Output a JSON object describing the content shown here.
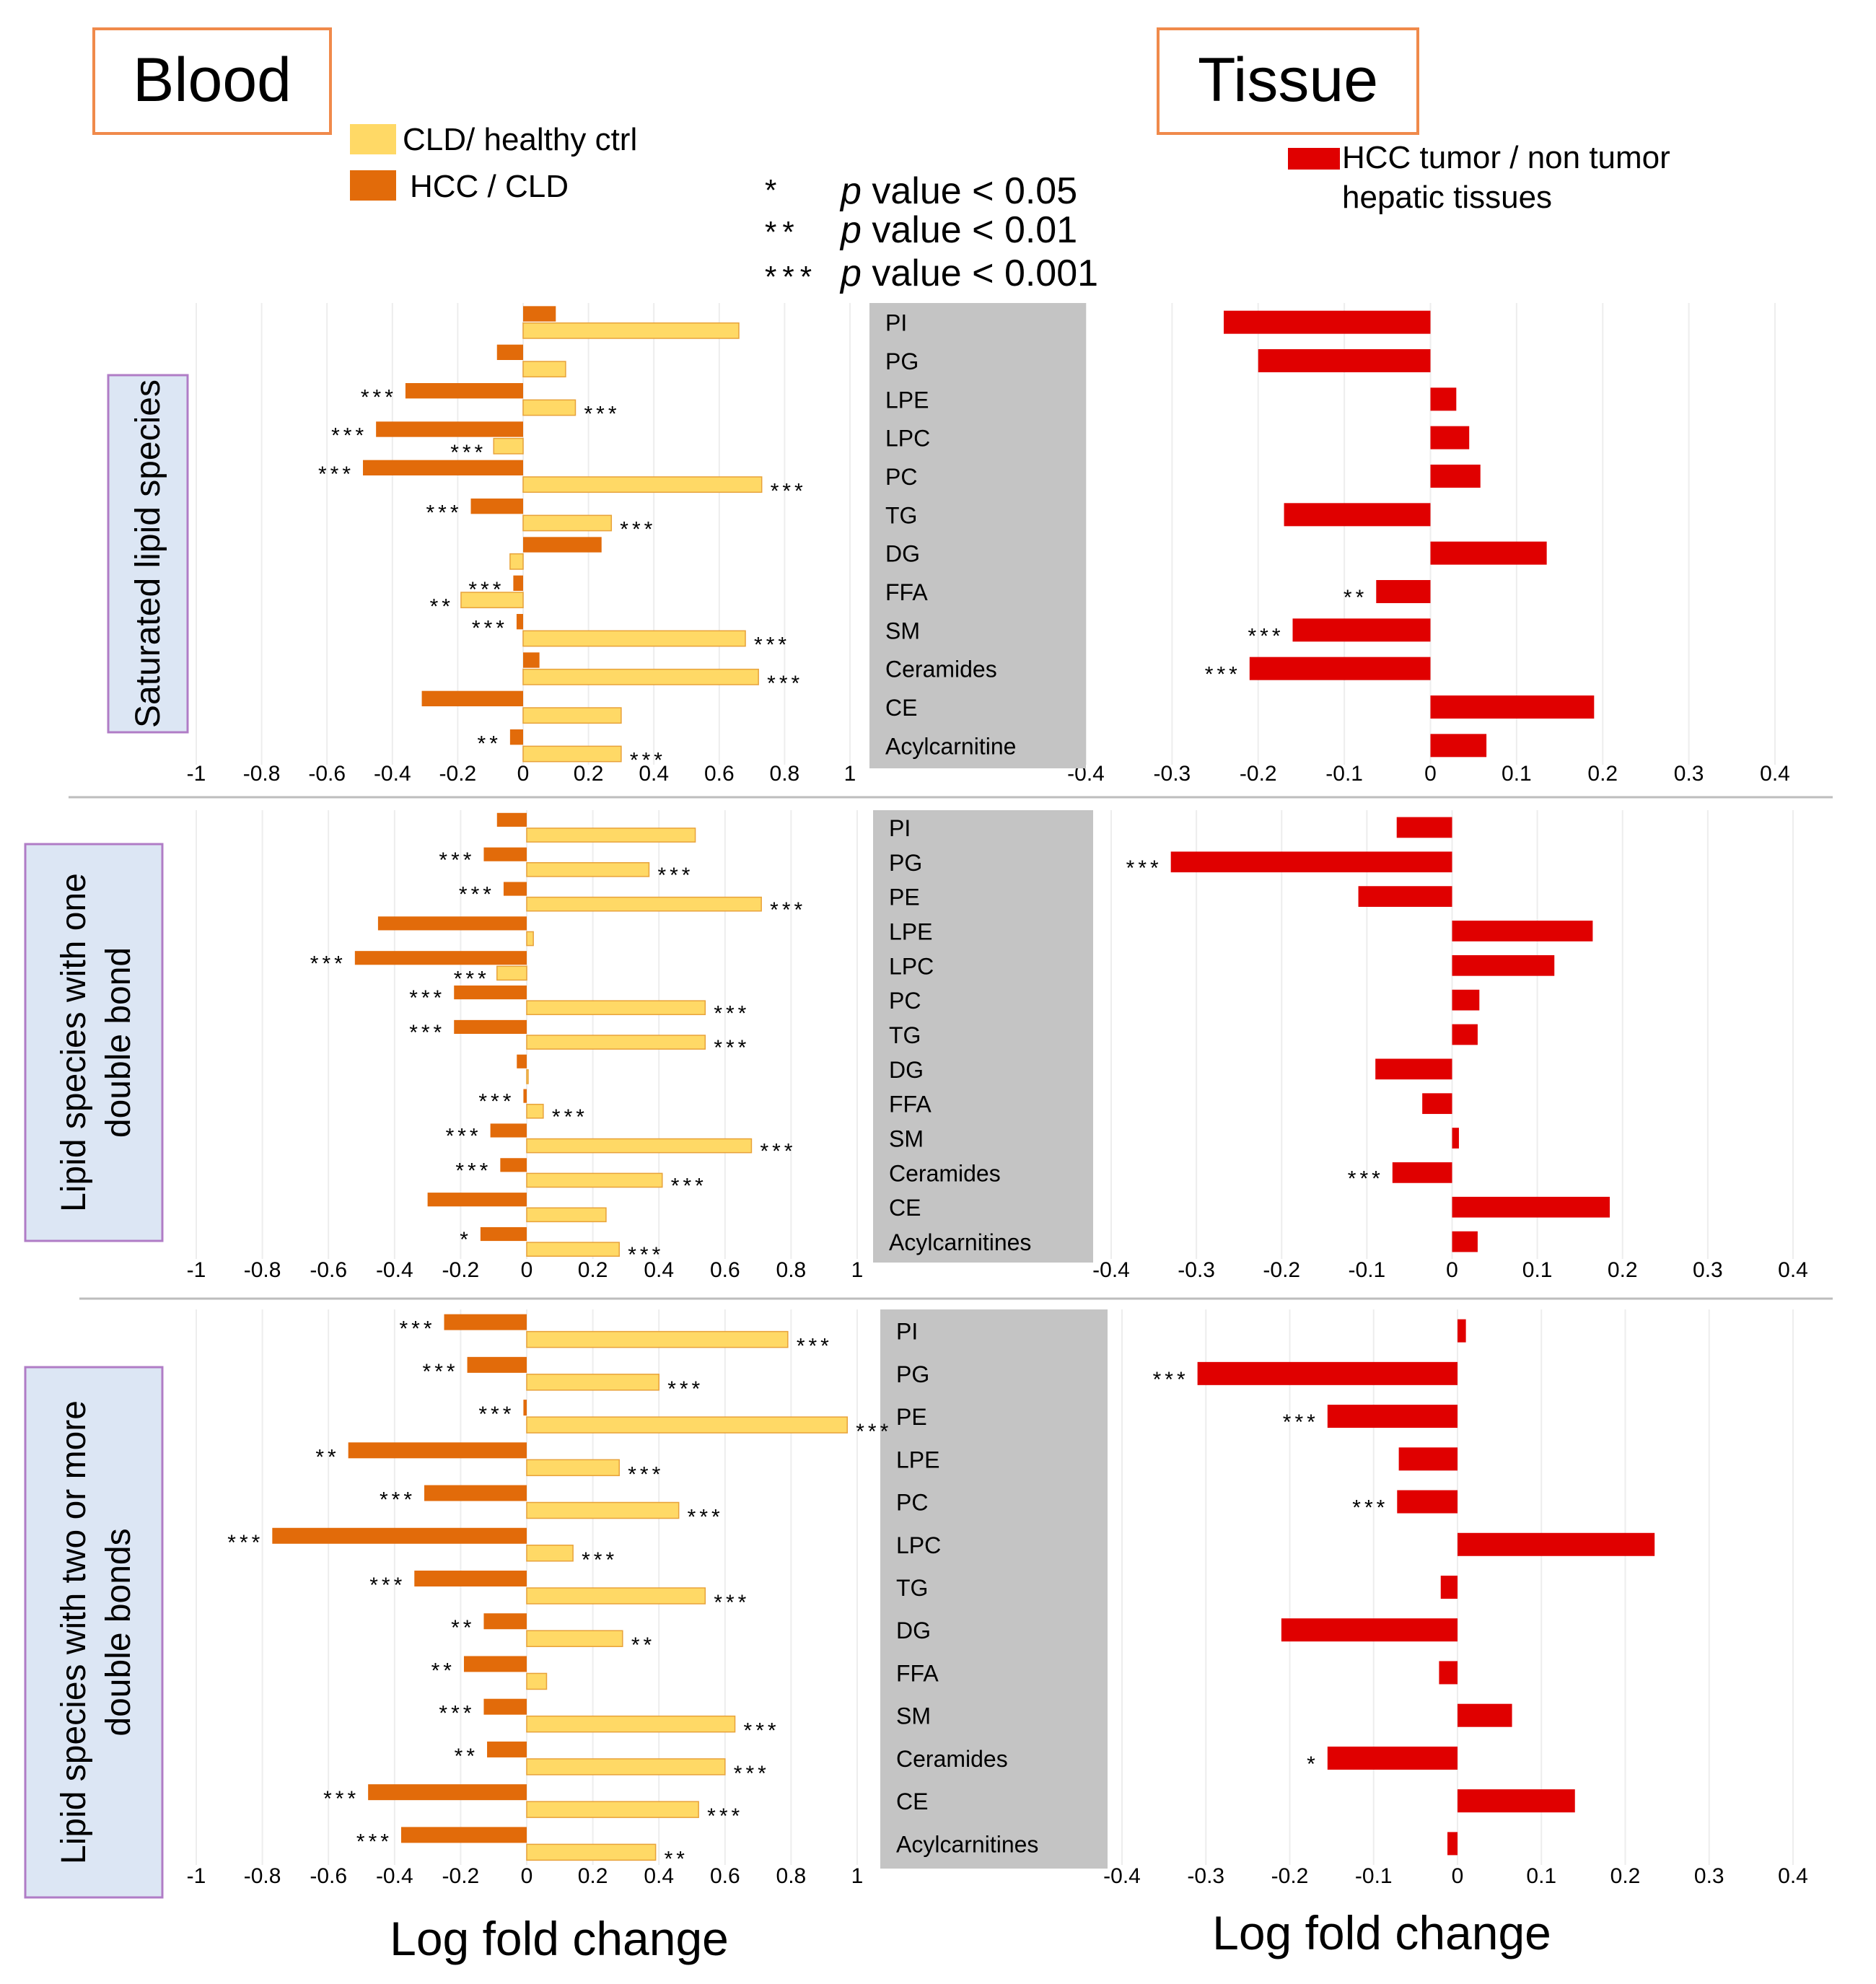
{
  "headers": {
    "blood": "Blood",
    "tissue": "Tissue",
    "xlabel": "Log fold change"
  },
  "legend": {
    "cld": "CLD/ healthy ctrl",
    "hcc": "HCC / CLD",
    "tissue_l1": "HCC tumor / non tumor",
    "tissue_l2": "hepatic tissues"
  },
  "pvalues": [
    {
      "stars": "*",
      "p": "p",
      "text": " value < 0.05"
    },
    {
      "stars": "**",
      "p": "p",
      "text": " value < 0.01"
    },
    {
      "stars": "***",
      "p": "p",
      "text": " value < 0.001"
    }
  ],
  "colors": {
    "cld": "#FFD966",
    "cld_edge": "#E8A23A",
    "hcc": "#E26B0A",
    "tissue": "#E00000",
    "label_box": "#C4C4C4",
    "side_box": "#DCE6F4",
    "side_edge": "#B07CC6",
    "header_edge": "#F08A4B"
  },
  "blood_ticks": [
    "-1",
    "-0.8",
    "-0.6",
    "-0.4",
    "-0.2",
    "0",
    "0.2",
    "0.4",
    "0.6",
    "0.8",
    "1"
  ],
  "tissue_ticks": [
    "-0.4",
    "-0.3",
    "-0.2",
    "-0.1",
    "0",
    "0.1",
    "0.2",
    "0.3",
    "0.4"
  ],
  "chart_data": [
    {
      "type": "bar",
      "title": "Saturated lipid species",
      "xlabel": "Log fold change",
      "categories": [
        "PI",
        "PG",
        "LPE",
        "LPC",
        "PC",
        "TG",
        "DG",
        "FFA",
        "SM",
        "Ceramides",
        "CE",
        "Acylcarnitine"
      ],
      "blood_xlim": [
        -1,
        1
      ],
      "tissue_xlim": [
        -0.4,
        0.4
      ],
      "series": [
        {
          "name": "HCC / CLD",
          "values": [
            0.1,
            -0.08,
            -0.36,
            -0.45,
            -0.49,
            -0.16,
            0.24,
            -0.03,
            -0.02,
            0.05,
            -0.31,
            -0.04
          ],
          "sig": [
            "",
            "",
            "***",
            "***",
            "***",
            "***",
            "",
            "***",
            "***",
            "",
            "",
            "**"
          ]
        },
        {
          "name": "CLD/ healthy ctrl",
          "values": [
            0.66,
            0.13,
            0.16,
            -0.09,
            0.73,
            0.27,
            -0.04,
            -0.19,
            0.68,
            0.72,
            0.3,
            0.3
          ],
          "sig": [
            "",
            "",
            "***",
            "***",
            "***",
            "***",
            "",
            "**",
            "***",
            "***",
            "",
            "***"
          ]
        },
        {
          "name": "HCC tumor / non tumor hepatic tissues",
          "values": [
            -0.24,
            -0.2,
            0.03,
            0.045,
            0.058,
            -0.17,
            0.135,
            -0.063,
            -0.16,
            -0.21,
            0.19,
            0.065
          ],
          "sig": [
            "",
            "",
            "",
            "",
            "",
            "",
            "",
            "**",
            "***",
            "***",
            "",
            ""
          ]
        }
      ]
    },
    {
      "type": "bar",
      "title": "Lipid species with one double bond",
      "xlabel": "Log fold change",
      "categories": [
        "PI",
        "PG",
        "PE",
        "LPE",
        "LPC",
        "PC",
        "TG",
        "DG",
        "FFA",
        "SM",
        "Ceramides",
        "CE",
        "Acylcarnitines"
      ],
      "blood_xlim": [
        -1,
        1
      ],
      "tissue_xlim": [
        -0.4,
        0.4
      ],
      "series": [
        {
          "name": "HCC / CLD",
          "values": [
            -0.09,
            -0.13,
            -0.07,
            -0.45,
            -0.52,
            -0.22,
            -0.22,
            -0.03,
            -0.01,
            -0.11,
            -0.08,
            -0.3,
            -0.14
          ],
          "sig": [
            "",
            "***",
            "***",
            "",
            "***",
            "***",
            "***",
            "",
            "***",
            "***",
            "***",
            "",
            "*"
          ]
        },
        {
          "name": "CLD/ healthy ctrl",
          "values": [
            0.51,
            0.37,
            0.71,
            0.02,
            -0.09,
            0.54,
            0.54,
            0.0,
            0.05,
            0.68,
            0.41,
            0.24,
            0.28
          ],
          "sig": [
            "",
            "***",
            "***",
            "",
            "***",
            "***",
            "***",
            "",
            "***",
            "***",
            "***",
            "",
            "***"
          ]
        },
        {
          "name": "HCC tumor / non tumor hepatic tissues",
          "values": [
            -0.065,
            -0.33,
            -0.11,
            0.165,
            0.12,
            0.032,
            0.03,
            -0.09,
            -0.035,
            0.008,
            -0.07,
            0.185,
            0.03
          ],
          "sig": [
            "",
            "***",
            "",
            "",
            "",
            "",
            "",
            "",
            "",
            "",
            "***",
            "",
            ""
          ]
        }
      ]
    },
    {
      "type": "bar",
      "title": "Lipid species with two or more double bonds",
      "xlabel": "Log fold change",
      "categories": [
        "PI",
        "PG",
        "PE",
        "LPE",
        "PC",
        "LPC",
        "TG",
        "DG",
        "FFA",
        "SM",
        "Ceramides",
        "CE",
        "Acylcarnitines"
      ],
      "blood_xlim": [
        -1,
        1
      ],
      "tissue_xlim": [
        -0.4,
        0.4
      ],
      "series": [
        {
          "name": "HCC / CLD",
          "values": [
            -0.25,
            -0.18,
            -0.01,
            -0.54,
            -0.31,
            -0.77,
            -0.34,
            -0.13,
            -0.19,
            -0.13,
            -0.12,
            -0.48,
            -0.38
          ],
          "sig": [
            "***",
            "***",
            "***",
            "**",
            "***",
            "***",
            "***",
            "**",
            "**",
            "***",
            "**",
            "***",
            "***"
          ]
        },
        {
          "name": "CLD/ healthy ctrl",
          "values": [
            0.79,
            0.4,
            0.97,
            0.28,
            0.46,
            0.14,
            0.54,
            0.29,
            0.06,
            0.63,
            0.6,
            0.52,
            0.39
          ],
          "sig": [
            "***",
            "***",
            "***",
            "***",
            "***",
            "***",
            "***",
            "**",
            "",
            "***",
            "***",
            "***",
            "**"
          ]
        },
        {
          "name": "HCC tumor / non tumor hepatic tissues",
          "values": [
            0.01,
            -0.31,
            -0.155,
            -0.07,
            -0.072,
            0.235,
            -0.02,
            -0.21,
            -0.022,
            0.065,
            -0.155,
            0.14,
            -0.012
          ],
          "sig": [
            "",
            "***",
            "***",
            "",
            "***",
            "",
            "",
            "",
            "",
            "",
            "*",
            "",
            ""
          ]
        }
      ]
    }
  ]
}
